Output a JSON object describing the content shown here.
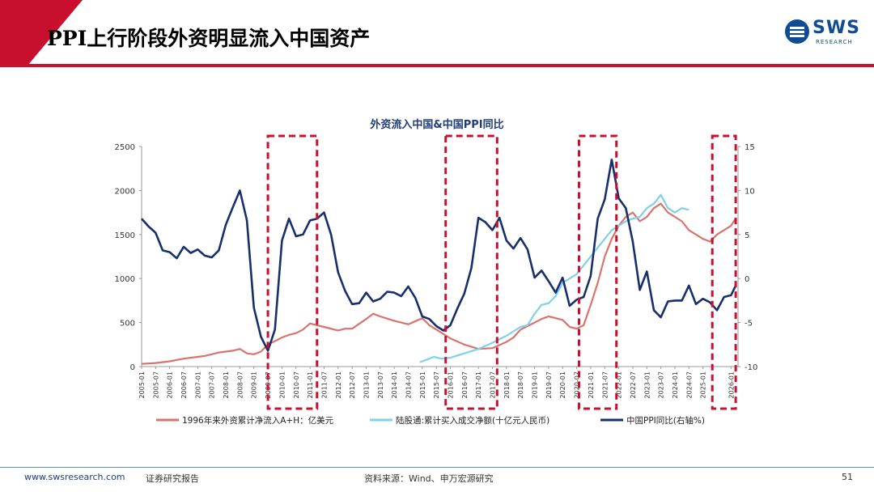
{
  "header": {
    "title": "PPI上行阶段外资明显流入中国资产",
    "logo_text": "SWS",
    "logo_sub": "RESEARCH"
  },
  "footer": {
    "website": "www.swsresearch.com",
    "label": "证券研究报告",
    "source": "资料来源：Wind、申万宏源研究",
    "page": "51"
  },
  "colors": {
    "brand_red": "#c8102e",
    "foreign_inflow": "#d9736e",
    "northbound": "#7fd0ea",
    "ppi": "#17306b"
  },
  "chart_data": {
    "type": "line",
    "title": "外资流入中国&中国PPI同比",
    "y_left": {
      "min": 0,
      "max": 2500,
      "ticks": [
        0,
        500,
        1000,
        1500,
        2000,
        2500
      ]
    },
    "y_right": {
      "min": -10,
      "max": 15,
      "ticks": [
        -10,
        -5,
        0,
        5,
        10,
        15
      ]
    },
    "x_ticks": [
      "2005-01",
      "2005-07",
      "2006-01",
      "2006-07",
      "2007-01",
      "2007-07",
      "2008-01",
      "2008-07",
      "2009-01",
      "2009-07",
      "2010-01",
      "2010-07",
      "2011-01",
      "2011-07",
      "2012-01",
      "2012-07",
      "2013-01",
      "2013-07",
      "2014-01",
      "2014-07",
      "2015-01",
      "2015-07",
      "2016-01",
      "2016-07",
      "2017-01",
      "2017-07",
      "2018-01",
      "2018-07",
      "2019-01",
      "2019-07",
      "2020-01",
      "2020-07",
      "2021-01",
      "2021-07",
      "2022-01",
      "2022-07",
      "2023-01",
      "2023-07",
      "2024-01",
      "2024-07",
      "2025-01",
      "2026-01"
    ],
    "highlight_periods": [
      {
        "start": "2009-07",
        "end": "2011-04"
      },
      {
        "start": "2015-11",
        "end": "2017-09"
      },
      {
        "start": "2020-08",
        "end": "2021-12"
      },
      {
        "start": "2025-05",
        "end": "2026-03"
      }
    ],
    "series": [
      {
        "name": "1996年来外资累计净流入A+H：亿美元",
        "axis": "left",
        "x": [
          "2005-01",
          "2005-07",
          "2006-01",
          "2006-07",
          "2007-01",
          "2007-04",
          "2007-07",
          "2007-10",
          "2008-01",
          "2008-04",
          "2008-07",
          "2008-10",
          "2009-01",
          "2009-04",
          "2009-07",
          "2010-01",
          "2010-04",
          "2010-07",
          "2010-10",
          "2011-01",
          "2011-04",
          "2011-07",
          "2012-01",
          "2012-04",
          "2012-07",
          "2013-01",
          "2013-04",
          "2013-07",
          "2014-01",
          "2014-04",
          "2014-07",
          "2015-01",
          "2015-04",
          "2015-07",
          "2016-01",
          "2016-07",
          "2017-01",
          "2017-07",
          "2018-01",
          "2018-04",
          "2018-07",
          "2019-01",
          "2019-04",
          "2019-07",
          "2020-01",
          "2020-04",
          "2020-07",
          "2020-10",
          "2021-01",
          "2021-04",
          "2021-07",
          "2021-10",
          "2022-01",
          "2022-04",
          "2022-07",
          "2022-10",
          "2023-01",
          "2023-04",
          "2023-07",
          "2023-10",
          "2024-01",
          "2024-04",
          "2024-07",
          "2024-10",
          "2025-01",
          "2025-04",
          "2025-07",
          "2025-10",
          "2026-01",
          "2026-03"
        ],
        "values": [
          30,
          40,
          60,
          90,
          110,
          120,
          140,
          160,
          170,
          180,
          200,
          150,
          140,
          170,
          250,
          330,
          360,
          380,
          420,
          490,
          470,
          450,
          410,
          430,
          430,
          540,
          600,
          570,
          520,
          500,
          480,
          550,
          470,
          420,
          320,
          250,
          200,
          210,
          280,
          330,
          420,
          500,
          540,
          570,
          530,
          450,
          430,
          470,
          700,
          950,
          1250,
          1450,
          1600,
          1700,
          1750,
          1650,
          1700,
          1800,
          1850,
          1750,
          1700,
          1650,
          1550,
          1500,
          1450,
          1420,
          1500,
          1550,
          1600,
          1680
        ]
      },
      {
        "name": "陆股通:累计买入成交净额(十亿元人民币)",
        "axis": "left",
        "x": [
          "2014-12",
          "2015-03",
          "2015-06",
          "2015-09",
          "2016-01",
          "2016-07",
          "2017-01",
          "2017-07",
          "2018-01",
          "2018-04",
          "2018-07",
          "2018-10",
          "2019-01",
          "2019-04",
          "2019-07",
          "2019-10",
          "2020-01",
          "2020-04",
          "2020-07",
          "2020-10",
          "2021-01",
          "2021-04",
          "2021-07",
          "2021-10",
          "2022-01",
          "2022-04",
          "2022-07",
          "2022-10",
          "2023-01",
          "2023-04",
          "2023-07",
          "2023-10",
          "2024-01",
          "2024-04",
          "2024-07"
        ],
        "values": [
          50,
          80,
          110,
          90,
          100,
          150,
          200,
          270,
          350,
          400,
          450,
          470,
          600,
          700,
          720,
          800,
          950,
          1000,
          1050,
          1150,
          1250,
          1350,
          1450,
          1550,
          1600,
          1650,
          1680,
          1700,
          1800,
          1850,
          1950,
          1800,
          1750,
          1800,
          1780
        ]
      },
      {
        "name": "中国PPI同比(右轴%)",
        "axis": "right",
        "x": [
          "2005-01",
          "2005-04",
          "2005-07",
          "2005-10",
          "2006-01",
          "2006-04",
          "2006-07",
          "2006-10",
          "2007-01",
          "2007-04",
          "2007-07",
          "2007-10",
          "2008-01",
          "2008-04",
          "2008-07",
          "2008-10",
          "2009-01",
          "2009-04",
          "2009-07",
          "2009-10",
          "2010-01",
          "2010-04",
          "2010-07",
          "2010-10",
          "2011-01",
          "2011-04",
          "2011-07",
          "2011-10",
          "2012-01",
          "2012-04",
          "2012-07",
          "2012-10",
          "2013-01",
          "2013-04",
          "2013-07",
          "2013-10",
          "2014-01",
          "2014-04",
          "2014-07",
          "2014-10",
          "2015-01",
          "2015-04",
          "2015-07",
          "2015-10",
          "2016-01",
          "2016-04",
          "2016-07",
          "2016-10",
          "2017-01",
          "2017-04",
          "2017-07",
          "2017-10",
          "2018-01",
          "2018-04",
          "2018-07",
          "2018-10",
          "2019-01",
          "2019-04",
          "2019-07",
          "2019-10",
          "2020-01",
          "2020-04",
          "2020-07",
          "2020-10",
          "2021-01",
          "2021-04",
          "2021-07",
          "2021-10",
          "2022-01",
          "2022-04",
          "2022-07",
          "2022-10",
          "2023-01",
          "2023-04",
          "2023-07",
          "2023-10",
          "2024-01",
          "2024-04",
          "2024-07",
          "2024-10",
          "2025-01",
          "2025-04",
          "2025-07",
          "2025-10",
          "2026-01",
          "2026-03"
        ],
        "values": [
          6.8,
          5.9,
          5.2,
          3.2,
          3.0,
          2.3,
          3.6,
          2.9,
          3.3,
          2.6,
          2.4,
          3.2,
          6.1,
          8.1,
          10.0,
          6.6,
          -3.3,
          -6.6,
          -8.2,
          -5.8,
          4.3,
          6.8,
          4.8,
          5.0,
          6.6,
          6.8,
          7.5,
          5.0,
          0.7,
          -1.4,
          -2.9,
          -2.8,
          -1.6,
          -2.6,
          -2.3,
          -1.5,
          -1.6,
          -2.0,
          -0.9,
          -2.2,
          -4.3,
          -4.6,
          -5.4,
          -5.9,
          -5.3,
          -3.4,
          -1.7,
          1.2,
          6.9,
          6.4,
          5.5,
          6.9,
          4.3,
          3.4,
          4.6,
          3.3,
          0.1,
          0.9,
          -0.3,
          -1.6,
          0.1,
          -3.1,
          -2.4,
          -2.1,
          0.3,
          6.8,
          9.0,
          13.5,
          9.1,
          8.0,
          4.2,
          -1.3,
          0.8,
          -3.6,
          -4.4,
          -2.6,
          -2.5,
          -2.5,
          -0.8,
          -2.9,
          -2.3,
          -2.7,
          -3.6,
          -2.1,
          -1.9,
          -0.8
        ]
      }
    ]
  }
}
